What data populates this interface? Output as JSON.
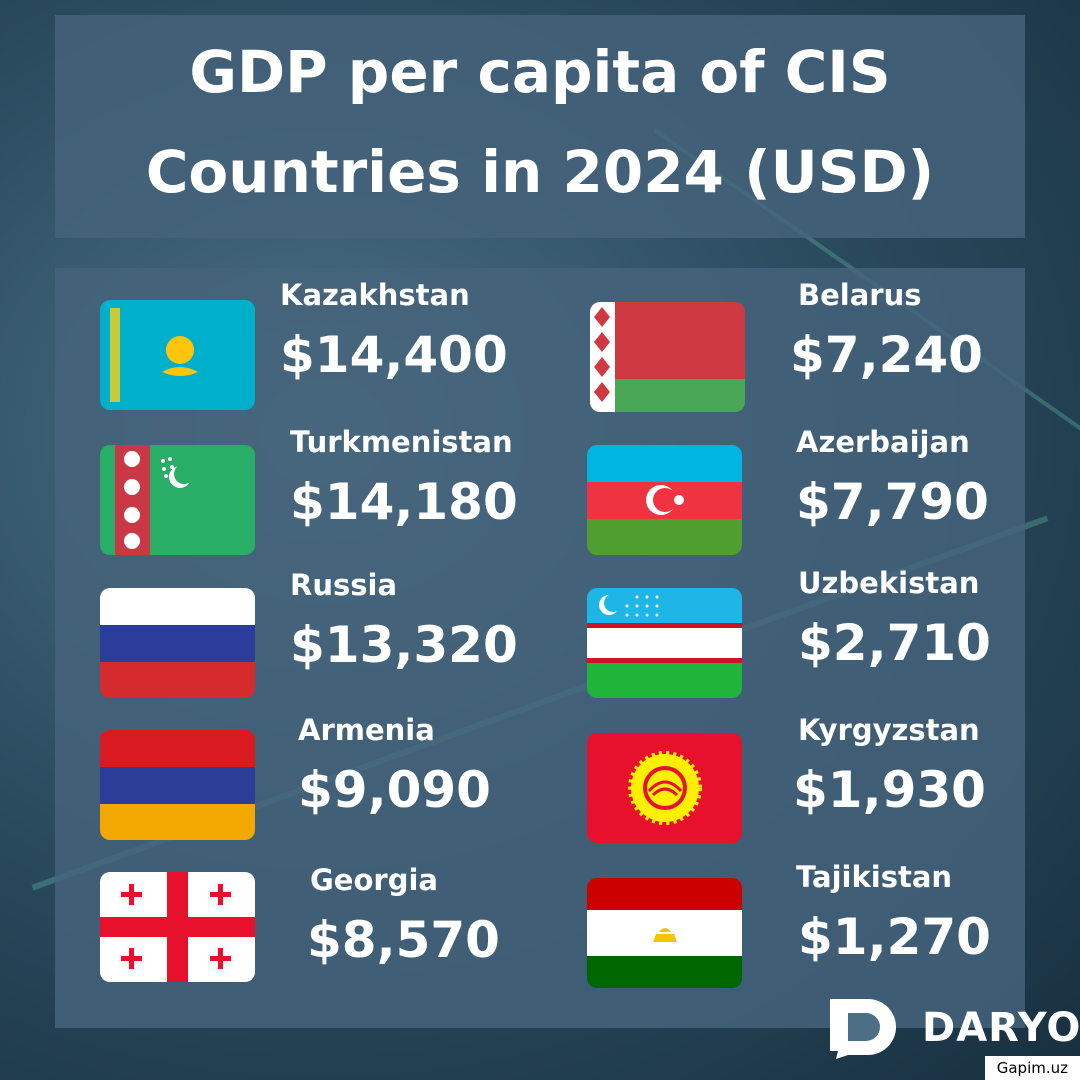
{
  "title": "GDP per capita of CIS Countries in 2024 (USD)",
  "left": [
    {
      "country": "Kazakhstan",
      "value": "$14,400"
    },
    {
      "country": "Turkmenistan",
      "value": "$14,180"
    },
    {
      "country": "Russia",
      "value": "$13,320"
    },
    {
      "country": "Armenia",
      "value": "$9,090"
    },
    {
      "country": "Georgia",
      "value": "$8,570"
    }
  ],
  "right": [
    {
      "country": "Belarus",
      "value": "$7,240"
    },
    {
      "country": "Azerbaijan",
      "value": "$7,790"
    },
    {
      "country": "Uzbekistan",
      "value": "$2,710"
    },
    {
      "country": "Kyrgyzstan",
      "value": "$1,930"
    },
    {
      "country": "Tajikistan",
      "value": "$1,270"
    }
  ],
  "logo": "DARYO",
  "watermark": "Gapim.uz"
}
